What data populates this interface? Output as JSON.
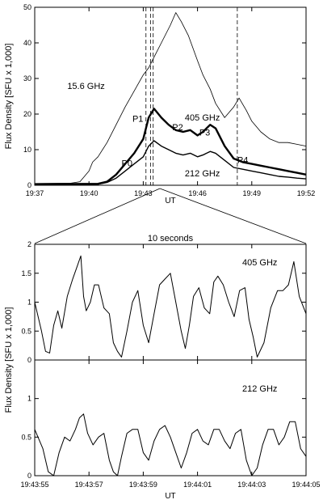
{
  "chart_data": [
    {
      "type": "line",
      "xlabel": "UT",
      "ylabel": "Flux Density [SFU x 1,000]",
      "xlim": [
        0,
        15
      ],
      "ylim": [
        0,
        50
      ],
      "xticks": [
        0,
        3,
        6,
        9,
        12,
        15
      ],
      "xtick_labels": [
        "19:37",
        "19:40",
        "19:43",
        "19:46",
        "19:49",
        "19:52"
      ],
      "yticks": [
        0,
        10,
        20,
        30,
        40,
        50
      ],
      "ytick_labels": [
        "0",
        "10",
        "20",
        "30",
        "40",
        "50"
      ],
      "grid": false,
      "dashed_markers_x": [
        6.15,
        6.4,
        6.55,
        11.2
      ],
      "series": [
        {
          "name": "15.6 GHz",
          "line_style": "thin",
          "x": [
            0,
            2,
            2.5,
            3,
            3.2,
            3.5,
            4,
            4.5,
            5,
            5.5,
            6,
            6.3,
            6.6,
            7,
            7.5,
            7.8,
            8.1,
            8.5,
            9,
            9.3,
            9.7,
            10,
            10.5,
            11,
            11.3,
            11.7,
            12,
            12.5,
            13,
            13.5,
            14,
            14.5,
            15
          ],
          "values": [
            0.5,
            0.6,
            1.0,
            4.0,
            6.5,
            8.0,
            12.0,
            17.0,
            22.0,
            26.5,
            31.0,
            33.0,
            36.0,
            40.0,
            45.0,
            48.5,
            46.0,
            42.0,
            35.0,
            31.0,
            27.0,
            23.0,
            19.0,
            22.0,
            24.5,
            21.0,
            18.0,
            15.0,
            13.0,
            12.0,
            12.0,
            11.5,
            11.0
          ]
        },
        {
          "name": "405 GHz",
          "line_style": "thick",
          "x": [
            0,
            3.5,
            4,
            4.5,
            5,
            5.5,
            6,
            6.3,
            6.6,
            7,
            7.4,
            7.8,
            8.2,
            8.6,
            9,
            9.3,
            9.7,
            10,
            10.5,
            11,
            11.5,
            12,
            12.5,
            13,
            13.5,
            14,
            14.5,
            15
          ],
          "values": [
            0.3,
            0.4,
            1.0,
            3.0,
            6.0,
            9.0,
            13.0,
            19.0,
            21.5,
            19.0,
            17.0,
            15.5,
            15.0,
            15.5,
            14.0,
            15.0,
            17.0,
            16.0,
            11.0,
            7.5,
            6.5,
            6.0,
            5.5,
            5.0,
            4.5,
            4.0,
            3.5,
            3.0
          ]
        },
        {
          "name": "212 GHz",
          "line_style": "medium",
          "x": [
            0,
            3.5,
            4,
            4.5,
            5,
            5.5,
            6,
            6.3,
            6.6,
            7,
            7.4,
            7.8,
            8.2,
            8.6,
            9,
            9.3,
            9.7,
            10,
            10.5,
            11,
            11.5,
            12,
            12.5,
            13,
            13.5,
            14,
            14.5,
            15
          ],
          "values": [
            0.2,
            0.3,
            0.8,
            2.0,
            4.0,
            6.0,
            8.0,
            11.0,
            12.5,
            11.0,
            10.0,
            9.0,
            8.5,
            9.0,
            8.0,
            8.5,
            9.5,
            9.0,
            7.0,
            5.0,
            4.5,
            4.0,
            3.5,
            3.0,
            2.5,
            2.3,
            2.0,
            1.8
          ]
        }
      ],
      "annotations": [
        {
          "text": "15.6 GHz",
          "x": 1.8,
          "y": 27
        },
        {
          "text": "405 GHz",
          "x": 8.3,
          "y": 18.2
        },
        {
          "text": "212 GHz",
          "x": 8.3,
          "y": 2.5
        },
        {
          "text": "P0",
          "x": 4.8,
          "y": 5.3
        },
        {
          "text": "P1",
          "x": 5.4,
          "y": 17.8
        },
        {
          "text": "P2",
          "x": 7.6,
          "y": 15.5
        },
        {
          "text": "P3",
          "x": 9.1,
          "y": 14.0
        },
        {
          "text": "P4",
          "x": 11.2,
          "y": 6.2
        }
      ]
    },
    {
      "type": "line",
      "title": "10 seconds",
      "xlabel": "UT",
      "ylabel": "Flux Density [SFU x 1,000]",
      "xlim": [
        0,
        10
      ],
      "xticks": [
        0,
        2,
        4,
        6,
        8,
        10
      ],
      "xtick_labels": [
        "19:43:55",
        "19:43:57",
        "19:43:59",
        "19:44:01",
        "19:44:03",
        "19:44:05"
      ],
      "grid": false,
      "panels": [
        {
          "name": "405 GHz",
          "ylim": [
            0,
            2
          ],
          "yticks": [
            0,
            0.5,
            1,
            1.5,
            2
          ],
          "ytick_labels": [
            "0",
            "0.5",
            "1",
            "1.5",
            "2"
          ],
          "x": [
            0,
            0.25,
            0.4,
            0.55,
            0.7,
            0.85,
            1.0,
            1.2,
            1.4,
            1.55,
            1.7,
            1.8,
            1.9,
            2.05,
            2.2,
            2.35,
            2.55,
            2.75,
            2.9,
            3.05,
            3.2,
            3.4,
            3.6,
            3.8,
            4.0,
            4.2,
            4.4,
            4.6,
            4.8,
            5.0,
            5.2,
            5.4,
            5.55,
            5.7,
            5.85,
            6.05,
            6.25,
            6.45,
            6.6,
            6.75,
            6.95,
            7.15,
            7.35,
            7.55,
            7.75,
            7.9,
            8.05,
            8.2,
            8.45,
            8.7,
            8.95,
            9.15,
            9.35,
            9.55,
            9.75,
            10.0
          ],
          "values": [
            1.0,
            0.5,
            0.15,
            0.12,
            0.6,
            0.85,
            0.55,
            1.1,
            1.4,
            1.6,
            1.8,
            1.1,
            0.85,
            1.0,
            1.3,
            1.3,
            0.9,
            0.8,
            0.3,
            0.15,
            0.05,
            0.5,
            1.0,
            1.2,
            0.6,
            0.3,
            0.8,
            1.3,
            1.4,
            1.5,
            1.0,
            0.5,
            0.2,
            0.6,
            1.1,
            1.25,
            0.9,
            0.8,
            1.35,
            1.45,
            1.3,
            1.0,
            0.75,
            1.2,
            1.25,
            0.7,
            0.4,
            0.05,
            0.3,
            0.9,
            1.2,
            1.2,
            1.3,
            1.7,
            1.1,
            0.8
          ]
        },
        {
          "name": "212 GHz",
          "ylim": [
            0,
            1.5
          ],
          "yticks": [
            0,
            0.5,
            1
          ],
          "ytick_labels": [
            "0",
            "0.5",
            "1"
          ],
          "x": [
            0,
            0.3,
            0.5,
            0.7,
            0.9,
            1.1,
            1.3,
            1.5,
            1.65,
            1.8,
            1.95,
            2.15,
            2.35,
            2.55,
            2.75,
            2.9,
            3.05,
            3.2,
            3.4,
            3.6,
            3.8,
            4.0,
            4.2,
            4.4,
            4.6,
            4.8,
            5.0,
            5.2,
            5.4,
            5.6,
            5.8,
            6.0,
            6.2,
            6.4,
            6.6,
            6.8,
            7.0,
            7.2,
            7.4,
            7.6,
            7.8,
            8.0,
            8.2,
            8.4,
            8.6,
            8.8,
            9.0,
            9.2,
            9.4,
            9.6,
            9.8,
            10.0
          ],
          "values": [
            0.6,
            0.35,
            0.05,
            0.0,
            0.3,
            0.5,
            0.45,
            0.6,
            0.75,
            0.8,
            0.55,
            0.4,
            0.5,
            0.55,
            0.2,
            0.05,
            0.0,
            0.25,
            0.55,
            0.6,
            0.6,
            0.3,
            0.2,
            0.45,
            0.6,
            0.65,
            0.5,
            0.3,
            0.1,
            0.3,
            0.55,
            0.6,
            0.45,
            0.4,
            0.6,
            0.6,
            0.45,
            0.35,
            0.55,
            0.6,
            0.2,
            0.0,
            0.1,
            0.4,
            0.6,
            0.6,
            0.4,
            0.5,
            0.7,
            0.7,
            0.35,
            0.25
          ]
        }
      ]
    }
  ]
}
